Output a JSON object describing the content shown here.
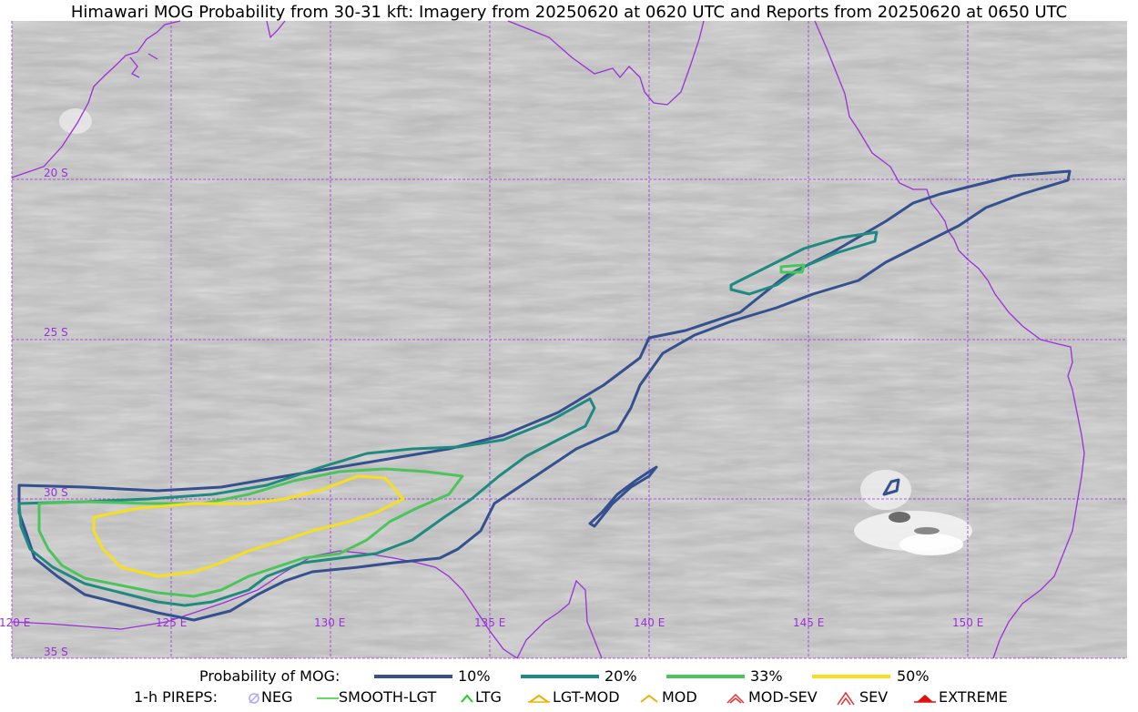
{
  "title": "Himawari MOG Probability from 30-31 kft: Imagery from 20250620 at 0620 UTC and Reports from 20250620 at 0650 UTC",
  "map": {
    "graticule_color": "#9b30d9",
    "coast_color": "#9b30d9",
    "latitudes": [
      {
        "label": "20 S"
      },
      {
        "label": "25 S"
      },
      {
        "label": "30 S"
      },
      {
        "label": "35 S"
      }
    ],
    "longitudes": [
      {
        "label": "120 E"
      },
      {
        "label": "125 E"
      },
      {
        "label": "130 E"
      },
      {
        "label": "135 E"
      },
      {
        "label": "140 E"
      },
      {
        "label": "145 E"
      },
      {
        "label": "150 E"
      }
    ]
  },
  "probability_legend": {
    "heading": "Probability of MOG:",
    "levels": [
      {
        "label": "10%",
        "color": "#34508f"
      },
      {
        "label": "20%",
        "color": "#1f8a80"
      },
      {
        "label": "33%",
        "color": "#4cc45c"
      },
      {
        "label": "50%",
        "color": "#f6e01e"
      }
    ]
  },
  "pirep_legend": {
    "heading": "1-h PIREPS:",
    "items": [
      {
        "label": "NEG",
        "icon": "neg-icon",
        "color": "#a8a8ff"
      },
      {
        "label": "SMOOTH-LGT",
        "icon": "smooth-lgt-icon",
        "color": "#33cc33"
      },
      {
        "label": "LTG",
        "icon": "ltg-icon",
        "color": "#22cc22"
      },
      {
        "label": "LGT-MOD",
        "icon": "lgt-mod-icon",
        "color": "#f0b000"
      },
      {
        "label": "MOD",
        "icon": "mod-icon",
        "color": "#f0b000"
      },
      {
        "label": "MOD-SEV",
        "icon": "mod-sev-icon",
        "color": "#e03030"
      },
      {
        "label": "SEV",
        "icon": "sev-icon",
        "color": "#e03030"
      },
      {
        "label": "EXTREME",
        "icon": "extreme-icon",
        "color": "#e01010"
      }
    ]
  }
}
